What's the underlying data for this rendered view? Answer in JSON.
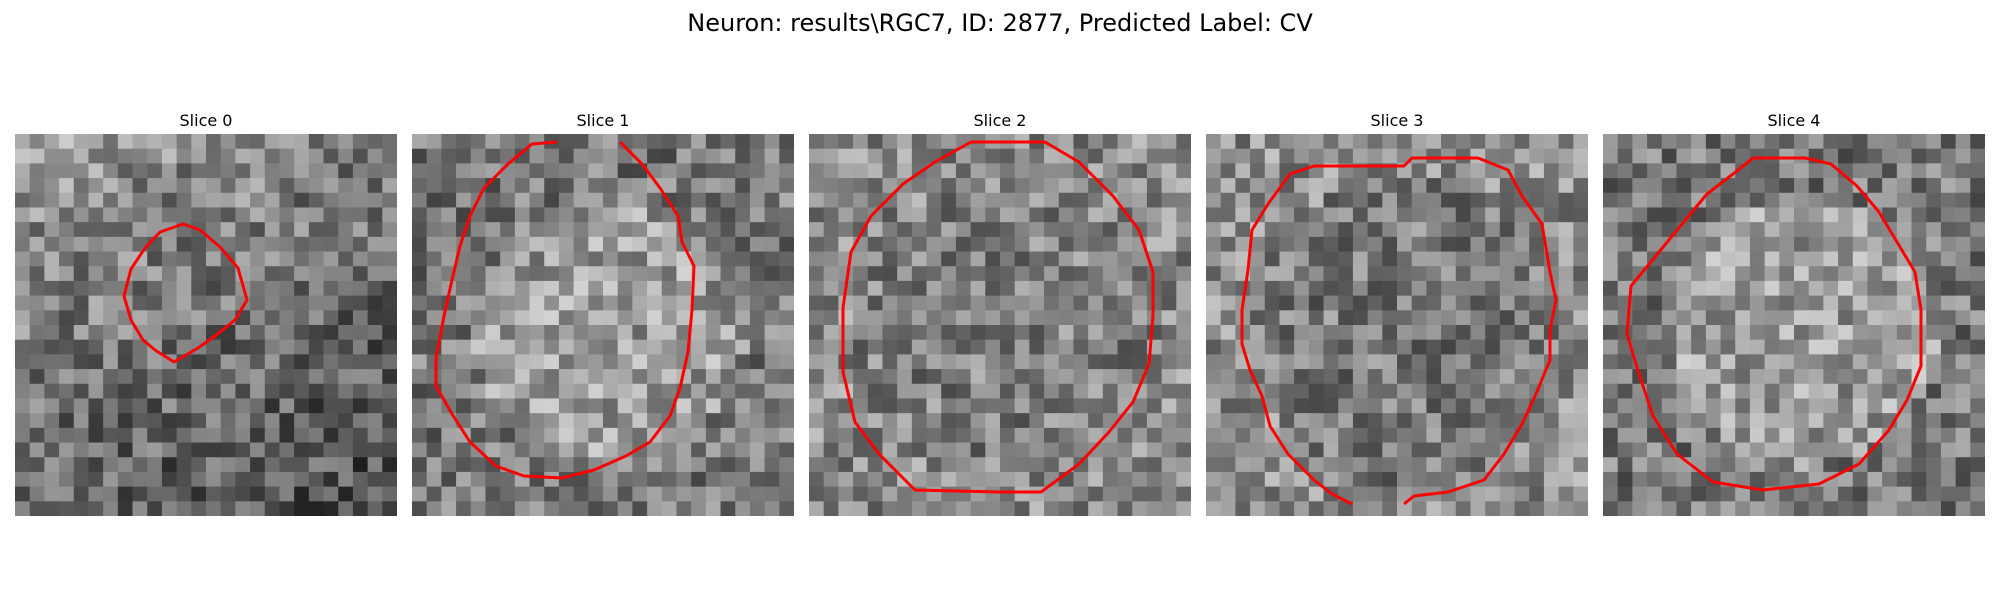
{
  "figure": {
    "title": "Neuron: results\\RGC7, ID: 2877, Predicted Label: CV",
    "contour_color": "#ff0000"
  },
  "slices": [
    {
      "title": "Slice 0"
    },
    {
      "title": "Slice 1"
    },
    {
      "title": "Slice 2"
    },
    {
      "title": "Slice 3"
    },
    {
      "title": "Slice 4"
    }
  ]
}
